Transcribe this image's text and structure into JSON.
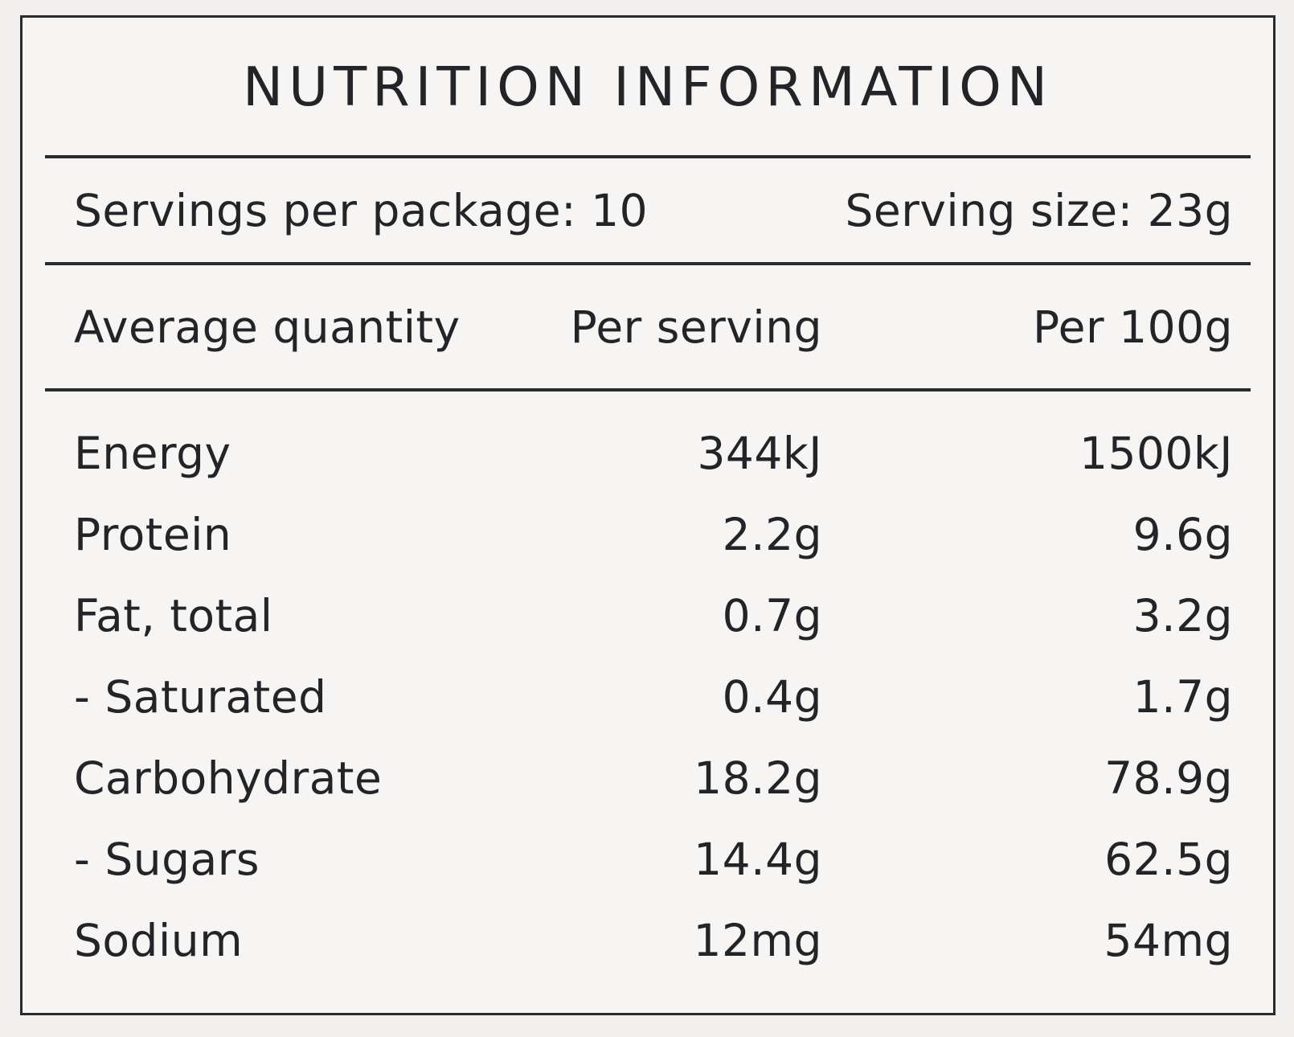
{
  "label": {
    "title": "NUTRITION INFORMATION",
    "servings_line": {
      "per_package": "Servings per package: 10",
      "serving_size": "Serving size: 23g"
    },
    "columns": {
      "quantity": "Average quantity",
      "per_serving": "Per serving",
      "per_100g": "Per 100g"
    },
    "rows": [
      {
        "name": "Energy",
        "per_serving": "344kJ",
        "per_100g": "1500kJ"
      },
      {
        "name": "Protein",
        "per_serving": "2.2g",
        "per_100g": "9.6g"
      },
      {
        "name": "Fat, total",
        "per_serving": "0.7g",
        "per_100g": "3.2g"
      },
      {
        "name": "- Saturated",
        "per_serving": "0.4g",
        "per_100g": "1.7g"
      },
      {
        "name": "Carbohydrate",
        "per_serving": "18.2g",
        "per_100g": "78.9g"
      },
      {
        "name": "- Sugars",
        "per_serving": "14.4g",
        "per_100g": "62.5g"
      },
      {
        "name": "Sodium",
        "per_serving": "12mg",
        "per_100g": "54mg"
      }
    ],
    "colors": {
      "text": "#242328",
      "rule": "#2a292d",
      "panel_background": "#f6f5f3",
      "page_background": "#f1f0ee"
    }
  }
}
